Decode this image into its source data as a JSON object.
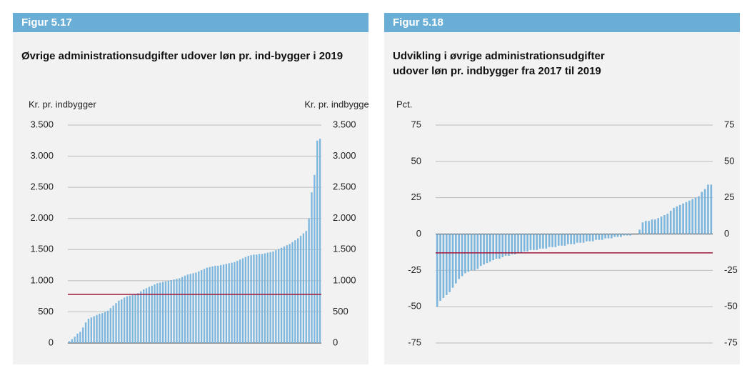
{
  "chart_data": [
    {
      "type": "bar",
      "header": "Figur 5.17",
      "title": "Øvrige administrationsudgifter udover løn pr. ind-bygger i 2019",
      "ylabel": "Kr. pr. indbygger",
      "y2label": "Kr. pr. indbygger",
      "ylim": [
        0,
        3500
      ],
      "yticks": [
        0,
        500,
        {
          "value": 1000,
          "label": "1.000"
        },
        {
          "value": 1500,
          "label": "1.500"
        },
        {
          "value": 2000,
          "label": "2.000"
        },
        {
          "value": 2500,
          "label": "2.500"
        },
        {
          "value": 3000,
          "label": "3.000"
        },
        {
          "value": 3500,
          "label": "3.500"
        }
      ],
      "grid": true,
      "color": "#7db6dc",
      "reference_line": 780,
      "reference_color": "#a0193c",
      "values": [
        30,
        60,
        100,
        150,
        180,
        250,
        330,
        390,
        410,
        430,
        450,
        470,
        480,
        500,
        520,
        560,
        600,
        640,
        680,
        700,
        730,
        750,
        760,
        770,
        780,
        800,
        830,
        860,
        880,
        900,
        920,
        940,
        960,
        970,
        980,
        990,
        1000,
        1010,
        1020,
        1030,
        1040,
        1060,
        1080,
        1100,
        1110,
        1120,
        1130,
        1150,
        1170,
        1190,
        1210,
        1220,
        1230,
        1240,
        1240,
        1250,
        1260,
        1270,
        1280,
        1290,
        1300,
        1320,
        1340,
        1360,
        1380,
        1400,
        1410,
        1420,
        1420,
        1430,
        1430,
        1440,
        1450,
        1460,
        1470,
        1490,
        1510,
        1530,
        1550,
        1570,
        1590,
        1620,
        1650,
        1680,
        1720,
        1760,
        1800,
        2000,
        2420,
        2700,
        3250,
        3280
      ]
    },
    {
      "type": "bar",
      "header": "Figur 5.18",
      "title": "Udvikling i øvrige administrationsudgifter udover løn pr. indbygger fra 2017 til 2019",
      "ylabel": "Pct.",
      "y2label": "Pct.",
      "ylim": [
        -75,
        75
      ],
      "yticks": [
        -75,
        -50,
        -25,
        0,
        25,
        50,
        75
      ],
      "grid": true,
      "color": "#7db6dc",
      "reference_line": -13,
      "reference_color": "#a0193c",
      "values": [
        -50,
        -46,
        -44,
        -42,
        -40,
        -37,
        -34,
        -31,
        -29,
        -27,
        -26,
        -25,
        -25,
        -24,
        -22,
        -21,
        -20,
        -19,
        -18,
        -17,
        -17,
        -16,
        -15,
        -15,
        -14,
        -14,
        -13,
        -13,
        -12,
        -12,
        -11,
        -11,
        -11,
        -10,
        -10,
        -10,
        -9,
        -9,
        -9,
        -8,
        -8,
        -8,
        -7,
        -7,
        -7,
        -6,
        -6,
        -6,
        -5,
        -5,
        -5,
        -4,
        -4,
        -4,
        -3,
        -3,
        -3,
        -2,
        -2,
        -2,
        -1,
        -1,
        -1,
        0,
        0,
        3,
        8,
        9,
        9,
        10,
        10,
        11,
        12,
        13,
        14,
        16,
        18,
        19,
        20,
        21,
        22,
        23,
        24,
        25,
        26,
        29,
        31,
        34,
        34
      ]
    }
  ]
}
